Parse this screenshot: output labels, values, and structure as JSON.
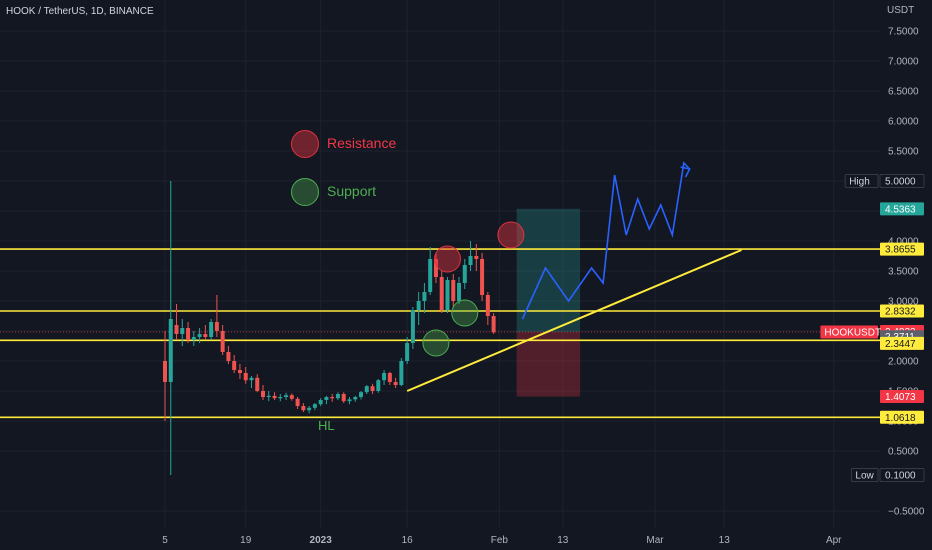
{
  "header": {
    "symbol_line": "HOOK / TetherUS, 1D, BINANCE",
    "currency": "USDT"
  },
  "legend": {
    "resistance": {
      "label": "Resistance",
      "color": "#e0323f"
    },
    "support": {
      "label": "Support",
      "color": "#4caf50"
    }
  },
  "annotations": {
    "hl": "HL"
  },
  "chart_data": {
    "type": "candlestick",
    "title": "HOOK / TetherUS, 1D, BINANCE",
    "ylabel": "USDT",
    "ylim": [
      -0.75,
      7.8
    ],
    "yticks": [
      -0.5,
      0.5,
      1.0,
      1.5,
      2.0,
      2.5,
      3.0,
      3.5,
      4.0,
      4.5,
      5.0,
      5.5,
      6.0,
      6.5,
      7.0,
      7.5
    ],
    "ytick_labels": [
      "−0.5000",
      "0.5000",
      "1.0000",
      "1.5000",
      "2.0000",
      "2.5000",
      "3.0000",
      "3.5000",
      "4.0000",
      "4.5000",
      "5.0000",
      "5.5000",
      "6.0000",
      "6.5000",
      "7.0000",
      "7.5000"
    ],
    "xticks": [
      {
        "day": 0,
        "label": "5"
      },
      {
        "day": 14,
        "label": "19"
      },
      {
        "day": 27,
        "label": "2023"
      },
      {
        "day": 42,
        "label": "16"
      },
      {
        "day": 58,
        "label": "Feb"
      },
      {
        "day": 69,
        "label": "13"
      },
      {
        "day": 85,
        "label": "Mar"
      },
      {
        "day": 97,
        "label": "13"
      },
      {
        "day": 116,
        "label": "Apr"
      }
    ],
    "candles": [
      [
        2.0,
        2.5,
        1.0,
        1.65
      ],
      [
        1.65,
        5.0,
        0.1,
        2.7
      ],
      [
        2.6,
        2.95,
        2.35,
        2.45
      ],
      [
        2.45,
        2.7,
        2.25,
        2.55
      ],
      [
        2.55,
        2.65,
        2.3,
        2.35
      ],
      [
        2.35,
        2.5,
        2.25,
        2.4
      ],
      [
        2.4,
        2.55,
        2.3,
        2.45
      ],
      [
        2.45,
        2.6,
        2.35,
        2.4
      ],
      [
        2.4,
        2.7,
        2.35,
        2.65
      ],
      [
        2.65,
        3.1,
        2.4,
        2.5
      ],
      [
        2.5,
        2.6,
        2.1,
        2.15
      ],
      [
        2.15,
        2.25,
        1.95,
        2.0
      ],
      [
        2.0,
        2.1,
        1.8,
        1.85
      ],
      [
        1.85,
        1.95,
        1.7,
        1.8
      ],
      [
        1.8,
        1.9,
        1.62,
        1.68
      ],
      [
        1.68,
        1.75,
        1.55,
        1.72
      ],
      [
        1.72,
        1.78,
        1.48,
        1.5
      ],
      [
        1.5,
        1.6,
        1.35,
        1.4
      ],
      [
        1.4,
        1.5,
        1.33,
        1.42
      ],
      [
        1.42,
        1.48,
        1.35,
        1.38
      ],
      [
        1.38,
        1.45,
        1.33,
        1.4
      ],
      [
        1.4,
        1.47,
        1.35,
        1.43
      ],
      [
        1.43,
        1.46,
        1.34,
        1.37
      ],
      [
        1.37,
        1.4,
        1.2,
        1.25
      ],
      [
        1.25,
        1.3,
        1.15,
        1.18
      ],
      [
        1.18,
        1.25,
        1.13,
        1.22
      ],
      [
        1.22,
        1.3,
        1.18,
        1.28
      ],
      [
        1.28,
        1.38,
        1.25,
        1.35
      ],
      [
        1.35,
        1.42,
        1.28,
        1.4
      ],
      [
        1.4,
        1.45,
        1.32,
        1.38
      ],
      [
        1.38,
        1.48,
        1.35,
        1.45
      ],
      [
        1.45,
        1.48,
        1.3,
        1.33
      ],
      [
        1.33,
        1.4,
        1.28,
        1.36
      ],
      [
        1.36,
        1.42,
        1.32,
        1.4
      ],
      [
        1.4,
        1.5,
        1.36,
        1.48
      ],
      [
        1.48,
        1.6,
        1.45,
        1.58
      ],
      [
        1.58,
        1.62,
        1.45,
        1.5
      ],
      [
        1.5,
        1.7,
        1.47,
        1.68
      ],
      [
        1.68,
        1.85,
        1.6,
        1.8
      ],
      [
        1.8,
        1.82,
        1.6,
        1.65
      ],
      [
        1.65,
        1.72,
        1.55,
        1.6
      ],
      [
        1.6,
        2.05,
        1.58,
        2.0
      ],
      [
        2.0,
        2.4,
        1.95,
        2.3
      ],
      [
        2.3,
        2.9,
        2.2,
        2.85
      ],
      [
        2.85,
        3.15,
        2.6,
        3.0
      ],
      [
        3.0,
        3.3,
        2.8,
        3.15
      ],
      [
        3.15,
        3.9,
        3.1,
        3.7
      ],
      [
        3.7,
        3.8,
        3.3,
        3.4
      ],
      [
        3.4,
        3.5,
        2.8,
        2.85
      ],
      [
        2.85,
        3.4,
        2.8,
        3.35
      ],
      [
        3.35,
        3.45,
        2.9,
        3.0
      ],
      [
        3.0,
        3.4,
        2.95,
        3.3
      ],
      [
        3.3,
        3.7,
        3.2,
        3.6
      ],
      [
        3.6,
        4.0,
        3.5,
        3.75
      ],
      [
        3.75,
        3.95,
        3.5,
        3.7
      ],
      [
        3.7,
        3.8,
        3.0,
        3.1
      ],
      [
        3.1,
        3.15,
        2.6,
        2.75
      ],
      [
        2.75,
        2.8,
        2.45,
        2.48
      ]
    ],
    "horizontal_levels": [
      1.0618,
      2.3447,
      2.8332,
      3.8655
    ],
    "price_labels": [
      {
        "label": "High",
        "value": 5.0,
        "text": "5.0000"
      },
      {
        "value": 4.5363,
        "text": "4.5363"
      },
      {
        "value": 3.8655,
        "text": "3.8655"
      },
      {
        "value": 2.8332,
        "text": "2.8332"
      },
      {
        "label": "HOOKUSDT",
        "value": 2.4833,
        "text": "2.4833",
        "countdown": "02:21:42"
      },
      {
        "value": 2.3711,
        "text": "2.3711"
      },
      {
        "value": 2.3447,
        "text": "2.3447"
      },
      {
        "value": 1.4073,
        "text": "1.4073"
      },
      {
        "value": 1.0618,
        "text": "1.0618"
      },
      {
        "label": "Low",
        "value": 0.1,
        "text": "0.1000"
      }
    ],
    "trendline": [
      [
        42,
        1.5
      ],
      [
        100,
        3.85
      ]
    ],
    "position": {
      "start_day": 61,
      "end_day": 72,
      "entry": 2.4833,
      "target": 4.5363,
      "stop": 1.4073
    },
    "projection": [
      [
        62,
        2.7
      ],
      [
        66,
        3.55
      ],
      [
        70,
        3.0
      ],
      [
        74,
        3.55
      ],
      [
        76,
        3.3
      ],
      [
        78,
        5.1
      ],
      [
        80,
        4.1
      ],
      [
        82,
        4.7
      ],
      [
        84,
        4.2
      ],
      [
        86,
        4.6
      ],
      [
        88,
        4.1
      ],
      [
        90,
        5.3
      ],
      [
        91,
        5.2
      ]
    ],
    "resistance_markers": [
      [
        49,
        3.7
      ],
      [
        60,
        4.1
      ]
    ],
    "support_markers": [
      [
        47,
        2.3
      ],
      [
        52,
        2.8
      ]
    ]
  }
}
